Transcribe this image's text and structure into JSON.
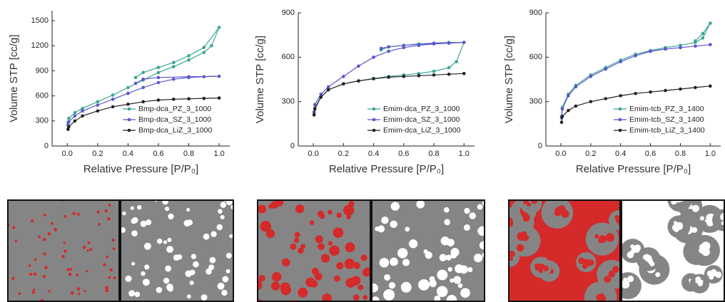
{
  "chart_data": [
    {
      "type": "line",
      "ylabel": "Volume STP [cc/g]",
      "xlabel": "Relative Pressure [P/P₀]",
      "xlim": [
        -0.1,
        1.07
      ],
      "ylim": [
        0,
        1620
      ],
      "xticks": [
        {
          "value": 0,
          "label": "0.0"
        },
        0.2,
        0.4,
        0.6,
        0.8,
        {
          "value": 1,
          "label": "1.0"
        }
      ],
      "yticks": [
        0,
        300,
        600,
        900,
        1200,
        1500
      ],
      "legend": "lower right",
      "series": [
        {
          "name": "Bmp-dca_PZ_3_1000",
          "color": "#3aa597",
          "x": [
            0.005,
            0.01,
            0.05,
            0.1,
            0.2,
            0.3,
            0.4,
            0.5,
            0.6,
            0.7,
            0.8,
            0.9,
            0.95,
            1.0,
            0.9,
            0.8,
            0.7,
            0.6,
            0.5,
            0.45
          ],
          "values": [
            280,
            330,
            400,
            450,
            530,
            610,
            700,
            790,
            880,
            950,
            1030,
            1120,
            1200,
            1420,
            1180,
            1080,
            1000,
            940,
            880,
            820
          ]
        },
        {
          "name": "Bmp-dca_SZ_3_1000",
          "color": "#5a55cc",
          "x": [
            0.005,
            0.01,
            0.05,
            0.1,
            0.2,
            0.3,
            0.4,
            0.5,
            0.6,
            0.7,
            0.8,
            0.9,
            1.0,
            0.8,
            0.6,
            0.5,
            0.45
          ],
          "values": [
            250,
            290,
            360,
            420,
            490,
            560,
            630,
            700,
            760,
            800,
            820,
            830,
            835,
            830,
            820,
            800,
            750
          ]
        },
        {
          "name": "Bmp-dca_LiZ_3_1000",
          "color": "#222222",
          "x": [
            0.005,
            0.01,
            0.05,
            0.1,
            0.2,
            0.3,
            0.4,
            0.5,
            0.6,
            0.7,
            0.8,
            0.9,
            1.0
          ],
          "values": [
            200,
            230,
            300,
            360,
            420,
            470,
            500,
            530,
            550,
            560,
            565,
            570,
            575
          ]
        }
      ]
    },
    {
      "type": "line",
      "ylabel": "Volume STP [cc/g]",
      "xlabel": "Relative Pressure [P/P₀]",
      "xlim": [
        -0.1,
        1.07
      ],
      "ylim": [
        0,
        900
      ],
      "xticks": [
        {
          "value": 0,
          "label": "0.0"
        },
        0.2,
        0.4,
        0.6,
        0.8,
        {
          "value": 1,
          "label": "1.0"
        }
      ],
      "yticks": [
        0,
        300,
        600,
        900
      ],
      "legend": "lower right",
      "series": [
        {
          "name": "Emim-dca_PZ_3_1000",
          "color": "#3aa597",
          "x": [
            0.005,
            0.01,
            0.05,
            0.1,
            0.2,
            0.3,
            0.4,
            0.5,
            0.6,
            0.7,
            0.8,
            0.9,
            0.95,
            1.0,
            0.9,
            0.7,
            0.5,
            0.45
          ],
          "values": [
            220,
            260,
            330,
            380,
            420,
            440,
            455,
            470,
            480,
            490,
            505,
            530,
            570,
            700,
            700,
            690,
            670,
            650
          ]
        },
        {
          "name": "Emim-dca_SZ_3_1000",
          "color": "#5a55cc",
          "x": [
            0.005,
            0.01,
            0.05,
            0.1,
            0.2,
            0.3,
            0.4,
            0.5,
            0.6,
            0.7,
            0.8,
            0.9,
            1.0,
            0.8,
            0.6,
            0.5,
            0.45
          ],
          "values": [
            230,
            280,
            350,
            400,
            470,
            540,
            600,
            640,
            665,
            680,
            690,
            695,
            700,
            695,
            680,
            670,
            660
          ]
        },
        {
          "name": "Emim-dca_LiZ_3_1000",
          "color": "#222222",
          "x": [
            0.005,
            0.01,
            0.05,
            0.1,
            0.2,
            0.3,
            0.4,
            0.5,
            0.6,
            0.7,
            0.8,
            0.9,
            1.0
          ],
          "values": [
            210,
            250,
            330,
            380,
            420,
            440,
            455,
            465,
            470,
            475,
            480,
            485,
            490
          ]
        }
      ]
    },
    {
      "type": "line",
      "ylabel": "Volume STP [cc/g]",
      "xlabel": "Relative Pressure [P/P₀]",
      "xlim": [
        -0.1,
        1.07
      ],
      "ylim": [
        0,
        900
      ],
      "xticks": [
        {
          "value": 0,
          "label": "0.0"
        },
        0.2,
        0.4,
        0.6,
        0.8,
        {
          "value": 1,
          "label": "1.0"
        }
      ],
      "yticks": [
        0,
        300,
        600,
        900
      ],
      "legend": "lower right",
      "series": [
        {
          "name": "Emim-tcb_PZ_3_1400",
          "color": "#3aa597",
          "x": [
            0.005,
            0.01,
            0.05,
            0.1,
            0.2,
            0.3,
            0.4,
            0.5,
            0.6,
            0.7,
            0.8,
            0.9,
            0.95,
            1.0,
            0.95,
            0.9
          ],
          "values": [
            200,
            260,
            350,
            410,
            480,
            530,
            580,
            620,
            645,
            665,
            680,
            700,
            730,
            830,
            760,
            710
          ]
        },
        {
          "name": "Emim-tcb_SZ_3_1400",
          "color": "#5a55cc",
          "x": [
            0.005,
            0.01,
            0.05,
            0.1,
            0.2,
            0.3,
            0.4,
            0.5,
            0.6,
            0.7,
            0.8,
            0.9,
            1.0
          ],
          "values": [
            190,
            250,
            340,
            400,
            470,
            520,
            570,
            610,
            640,
            655,
            665,
            675,
            685
          ]
        },
        {
          "name": "Emim-tcb_LiZ_3_1400",
          "color": "#222222",
          "x": [
            0.005,
            0.01,
            0.05,
            0.1,
            0.2,
            0.3,
            0.4,
            0.5,
            0.6,
            0.7,
            0.8,
            0.9,
            1.0
          ],
          "values": [
            160,
            200,
            240,
            270,
            300,
            320,
            340,
            355,
            365,
            375,
            385,
            395,
            405
          ]
        }
      ]
    }
  ]
}
